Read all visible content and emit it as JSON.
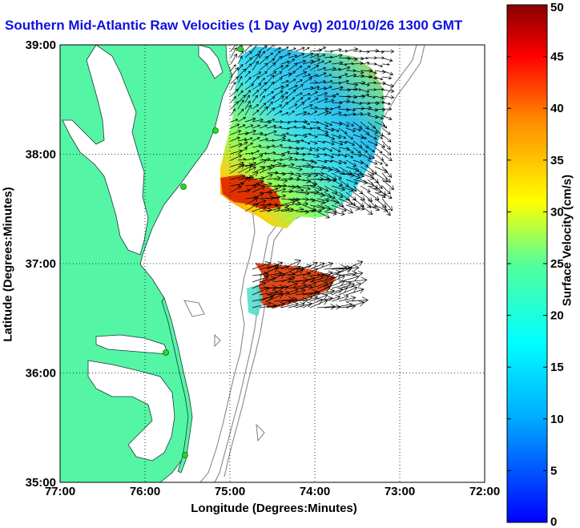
{
  "title": "Southern Mid-Atlantic Raw Velocities (1 Day Avg) 2010/10/26 1300 GMT",
  "map": {
    "x_axis": {
      "label": "Longitude (Degrees:Minutes)",
      "ticks": [
        "77:00",
        "76:00",
        "75:00",
        "74:00",
        "73:00",
        "72:00"
      ],
      "range": [
        -77,
        -72
      ]
    },
    "y_axis": {
      "label": "Latitude (Degrees:Minutes)",
      "ticks": [
        "35:00",
        "36:00",
        "37:00",
        "38:00",
        "39:00"
      ],
      "range": [
        35,
        39
      ]
    },
    "grid": "dotted",
    "land_color": "#55f5a6",
    "water_color": "#ffffff",
    "station_color": "#22dd22"
  },
  "colorbar": {
    "label": "Surface Velocity (cm/s)",
    "min": 0,
    "max": 50,
    "ticks": [
      "0",
      "5",
      "10",
      "15",
      "20",
      "25",
      "30",
      "35",
      "40",
      "45",
      "50"
    ],
    "colormap": "jet"
  }
}
